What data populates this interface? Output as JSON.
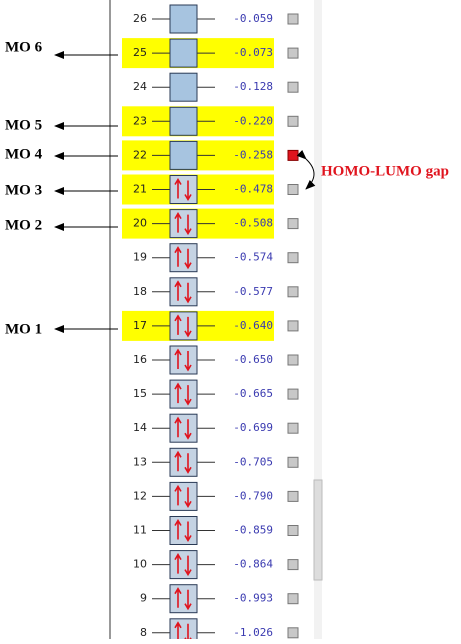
{
  "orbitals": [
    {
      "number": 26,
      "energy": "-0.059",
      "occupied": false,
      "highlighted": false,
      "selected": false
    },
    {
      "number": 25,
      "energy": "-0.073",
      "occupied": false,
      "highlighted": true,
      "selected": false
    },
    {
      "number": 24,
      "energy": "-0.128",
      "occupied": false,
      "highlighted": false,
      "selected": false
    },
    {
      "number": 23,
      "energy": "-0.220",
      "occupied": false,
      "highlighted": true,
      "selected": false
    },
    {
      "number": 22,
      "energy": "-0.258",
      "occupied": false,
      "highlighted": true,
      "selected": true
    },
    {
      "number": 21,
      "energy": "-0.478",
      "occupied": true,
      "highlighted": true,
      "selected": false
    },
    {
      "number": 20,
      "energy": "-0.508",
      "occupied": true,
      "highlighted": true,
      "selected": false
    },
    {
      "number": 19,
      "energy": "-0.574",
      "occupied": true,
      "highlighted": false,
      "selected": false
    },
    {
      "number": 18,
      "energy": "-0.577",
      "occupied": true,
      "highlighted": false,
      "selected": false
    },
    {
      "number": 17,
      "energy": "-0.640",
      "occupied": true,
      "highlighted": true,
      "selected": false
    },
    {
      "number": 16,
      "energy": "-0.650",
      "occupied": true,
      "highlighted": false,
      "selected": false
    },
    {
      "number": 15,
      "energy": "-0.665",
      "occupied": true,
      "highlighted": false,
      "selected": false
    },
    {
      "number": 14,
      "energy": "-0.699",
      "occupied": true,
      "highlighted": false,
      "selected": false
    },
    {
      "number": 13,
      "energy": "-0.705",
      "occupied": true,
      "highlighted": false,
      "selected": false
    },
    {
      "number": 12,
      "energy": "-0.790",
      "occupied": true,
      "highlighted": false,
      "selected": false
    },
    {
      "number": 11,
      "energy": "-0.859",
      "occupied": true,
      "highlighted": false,
      "selected": false
    },
    {
      "number": 10,
      "energy": "-0.864",
      "occupied": true,
      "highlighted": false,
      "selected": false
    },
    {
      "number": 9,
      "energy": "-0.993",
      "occupied": true,
      "highlighted": false,
      "selected": false
    },
    {
      "number": 8,
      "energy": "-1.026",
      "occupied": true,
      "highlighted": false,
      "selected": false
    }
  ],
  "annotations": [
    {
      "label": "MO 6"
    },
    {
      "label": "MO 5"
    },
    {
      "label": "MO 4"
    },
    {
      "label": "MO 3"
    },
    {
      "label": "MO 2"
    },
    {
      "label": "MO 1"
    },
    {
      "label": "HOMO-LUMO gap"
    }
  ]
}
